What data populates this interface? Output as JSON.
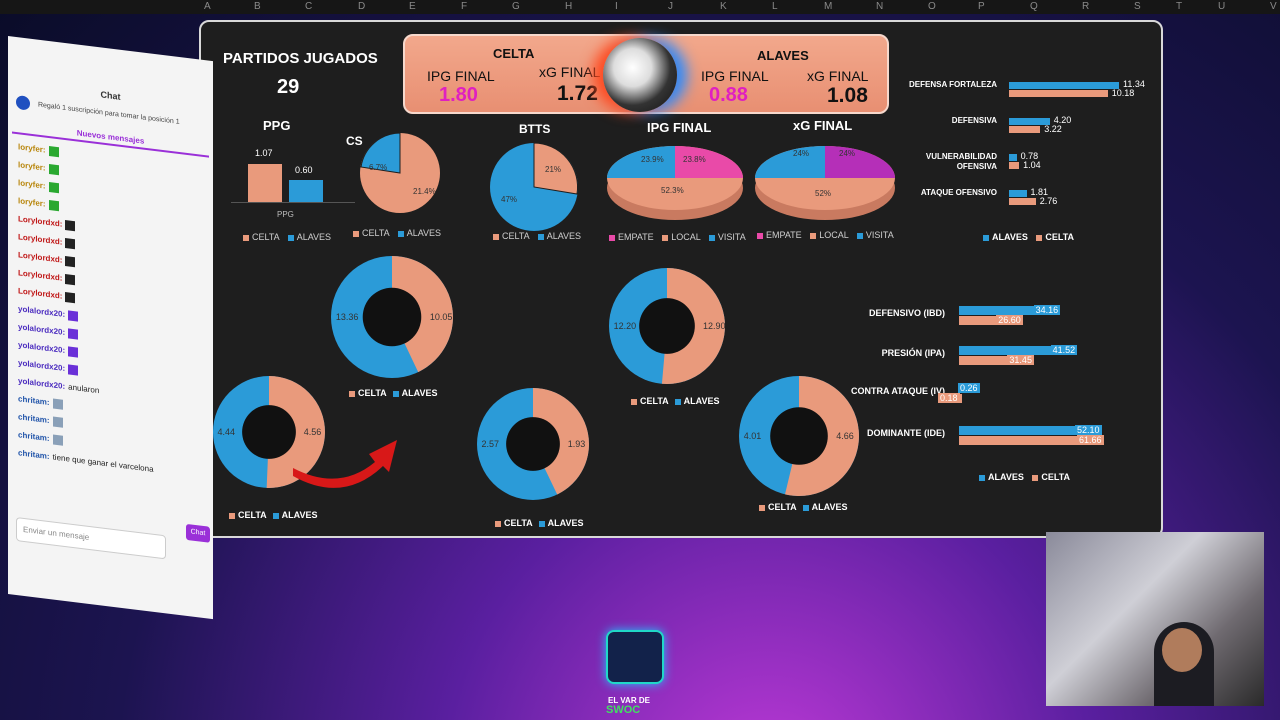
{
  "sheet": {
    "columns": [
      "A",
      "B",
      "C",
      "D",
      "E",
      "F",
      "G",
      "H",
      "I",
      "J",
      "K",
      "L",
      "M",
      "N",
      "O",
      "P",
      "Q",
      "R",
      "S",
      "T",
      "U",
      "V"
    ]
  },
  "header": {
    "played_label": "PARTIDOS JUGADOS",
    "played_value": "29",
    "home_team": "CELTA",
    "away_team": "ALAVES",
    "home_ipg_label": "IPG FINAL",
    "home_ipg_value": "1.80",
    "home_xg_label": "xG FINAL",
    "home_xg_value": "1.72",
    "away_ipg_label": "IPG FINAL",
    "away_ipg_value": "0.88",
    "away_xg_label": "xG FINAL",
    "away_xg_value": "1.08"
  },
  "colors": {
    "celta": "#e99a7c",
    "alaves": "#2b9bd8",
    "magenta": "#e020c0",
    "empate": "#e94aa8",
    "visita": "#2b9bd8"
  },
  "ppg": {
    "title": "PPG",
    "axis_label": "PPG",
    "values": [
      "1.07",
      "0.60"
    ],
    "legend": [
      "CELTA",
      "ALAVES"
    ]
  },
  "cs": {
    "title": "CS",
    "labels": [
      "21.4%",
      "6.7%"
    ],
    "legend": [
      "CELTA",
      "ALAVES"
    ]
  },
  "btts": {
    "title": "BTTS",
    "labels": [
      "21%",
      "47%"
    ],
    "legend": [
      "CELTA",
      "ALAVES"
    ]
  },
  "ipg_pie": {
    "title": "IPG FINAL",
    "labels": [
      "23.9%",
      "23.8%",
      "52.3%"
    ],
    "legend": [
      "EMPATE",
      "LOCAL",
      "VISITA"
    ]
  },
  "xg_pie": {
    "title": "xG FINAL",
    "labels": [
      "24%",
      "24%",
      "52%"
    ],
    "legend": [
      "EMPATE",
      "LOCAL",
      "VISITA"
    ]
  },
  "rates": {
    "rows": [
      {
        "label": "DEFENSA FORTALEZA",
        "alaves": "11.34",
        "celta": "10.18"
      },
      {
        "label": "DEFENSIVA",
        "alaves": "4.20",
        "celta": "3.22"
      },
      {
        "label": "VULNERABILIDAD OFENSIVA",
        "alaves": "0.78",
        "celta": "1.04"
      },
      {
        "label": "ATAQUE OFENSIVO",
        "alaves": "1.81",
        "celta": "2.76"
      }
    ],
    "legend": [
      "ALAVES",
      "CELTA"
    ]
  },
  "donuts": [
    {
      "celta": "10.05",
      "alaves": "13.36",
      "legend": [
        "CELTA",
        "ALAVES"
      ]
    },
    {
      "celta": "12.90",
      "alaves": "12.20",
      "legend": [
        "CELTA",
        "ALAVES"
      ]
    },
    {
      "celta": "4.56",
      "alaves": "4.44",
      "legend": [
        "CELTA",
        "ALAVES"
      ]
    },
    {
      "celta": "1.93",
      "alaves": "2.57",
      "legend": [
        "CELTA",
        "ALAVES"
      ]
    },
    {
      "celta": "4.66",
      "alaves": "4.01",
      "legend": [
        "CELTA",
        "ALAVES"
      ]
    }
  ],
  "style_index": {
    "rows": [
      {
        "label": "DEFENSIVO (IBD)",
        "alaves": "34.16",
        "celta": "26.60"
      },
      {
        "label": "PRESIÓN (IPA)",
        "alaves": "41.52",
        "celta": "31.45"
      },
      {
        "label": "CONTRA ATAQUE (IV)",
        "alaves": "0.26",
        "celta": "0.18"
      },
      {
        "label": "DOMINANTE (IDE)",
        "alaves": "52.10",
        "celta": "61.66"
      }
    ],
    "legend": [
      "ALAVES",
      "CELTA"
    ]
  },
  "chat": {
    "title": "Chat",
    "promo": "Regaló 1 suscripción para tomar la posición 1",
    "new_messages": "Nuevos mensajes",
    "messages": [
      {
        "user": "loryfer:",
        "text": ""
      },
      {
        "user": "loryfer:",
        "text": ""
      },
      {
        "user": "loryfer:",
        "text": ""
      },
      {
        "user": "loryfer:",
        "text": ""
      },
      {
        "user": "Lorylordxd:",
        "text": ""
      },
      {
        "user": "Lorylordxd:",
        "text": ""
      },
      {
        "user": "Lorylordxd:",
        "text": ""
      },
      {
        "user": "Lorylordxd:",
        "text": ""
      },
      {
        "user": "Lorylordxd:",
        "text": ""
      },
      {
        "user": "yolalordx20:",
        "text": ""
      },
      {
        "user": "yolalordx20:",
        "text": ""
      },
      {
        "user": "yolalordx20:",
        "text": ""
      },
      {
        "user": "yolalordx20:",
        "text": ""
      },
      {
        "user": "yolalordx20:",
        "text": "anularon"
      },
      {
        "user": "chritam:",
        "text": ""
      },
      {
        "user": "chritam:",
        "text": ""
      },
      {
        "user": "chritam:",
        "text": ""
      },
      {
        "user": "chritam:",
        "text": "tiene que ganar el varcelona"
      }
    ],
    "input_placeholder": "Enviar un mensaje",
    "send_label": "Chat"
  },
  "logo": {
    "line1": "EL VAR DE",
    "line2": "SWOC"
  }
}
